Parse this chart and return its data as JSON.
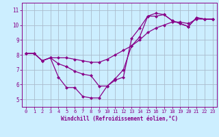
{
  "xlabel": "Windchill (Refroidissement éolien,°C)",
  "bg_color": "#cceeff",
  "grid_color": "#aabbcc",
  "line_color": "#880088",
  "xlim": [
    -0.5,
    23.5
  ],
  "ylim": [
    4.5,
    11.5
  ],
  "xticks": [
    0,
    1,
    2,
    3,
    4,
    5,
    6,
    7,
    8,
    9,
    10,
    11,
    12,
    13,
    14,
    15,
    16,
    17,
    18,
    19,
    20,
    21,
    22,
    23
  ],
  "yticks": [
    5,
    6,
    7,
    8,
    9,
    10,
    11
  ],
  "line1_x": [
    0,
    1,
    2,
    3,
    4,
    5,
    6,
    7,
    8,
    9,
    10,
    11,
    12,
    13,
    14,
    15,
    16,
    17,
    18,
    19,
    20,
    21,
    22,
    23
  ],
  "line1_y": [
    8.1,
    8.1,
    7.6,
    7.8,
    6.5,
    5.8,
    5.8,
    5.2,
    5.1,
    5.1,
    5.9,
    6.3,
    6.5,
    9.1,
    9.8,
    10.6,
    10.6,
    10.7,
    10.3,
    10.1,
    9.9,
    10.5,
    10.4,
    10.4
  ],
  "line2_x": [
    0,
    1,
    2,
    3,
    4,
    5,
    6,
    7,
    8,
    9,
    10,
    11,
    12,
    13,
    14,
    15,
    16,
    17,
    18,
    19,
    20,
    21,
    22,
    23
  ],
  "line2_y": [
    8.1,
    8.1,
    7.6,
    7.8,
    7.8,
    7.8,
    7.7,
    7.6,
    7.5,
    7.5,
    7.7,
    8.0,
    8.3,
    8.6,
    9.0,
    9.5,
    9.8,
    10.0,
    10.2,
    10.2,
    10.1,
    10.4,
    10.4,
    10.4
  ],
  "line3_x": [
    0,
    1,
    2,
    3,
    4,
    5,
    6,
    7,
    8,
    9,
    10,
    11,
    12,
    13,
    14,
    15,
    16,
    17,
    18,
    19,
    20,
    21,
    22,
    23
  ],
  "line3_y": [
    8.1,
    8.1,
    7.6,
    7.8,
    7.4,
    7.2,
    6.9,
    6.7,
    6.6,
    5.9,
    5.9,
    6.4,
    7.0,
    8.6,
    9.2,
    10.6,
    10.8,
    10.7,
    10.3,
    10.1,
    9.9,
    10.5,
    10.4,
    10.4
  ],
  "marker_size": 2.5,
  "linewidth": 0.9,
  "tick_fontsize": 5.0,
  "xlabel_fontsize": 5.5
}
